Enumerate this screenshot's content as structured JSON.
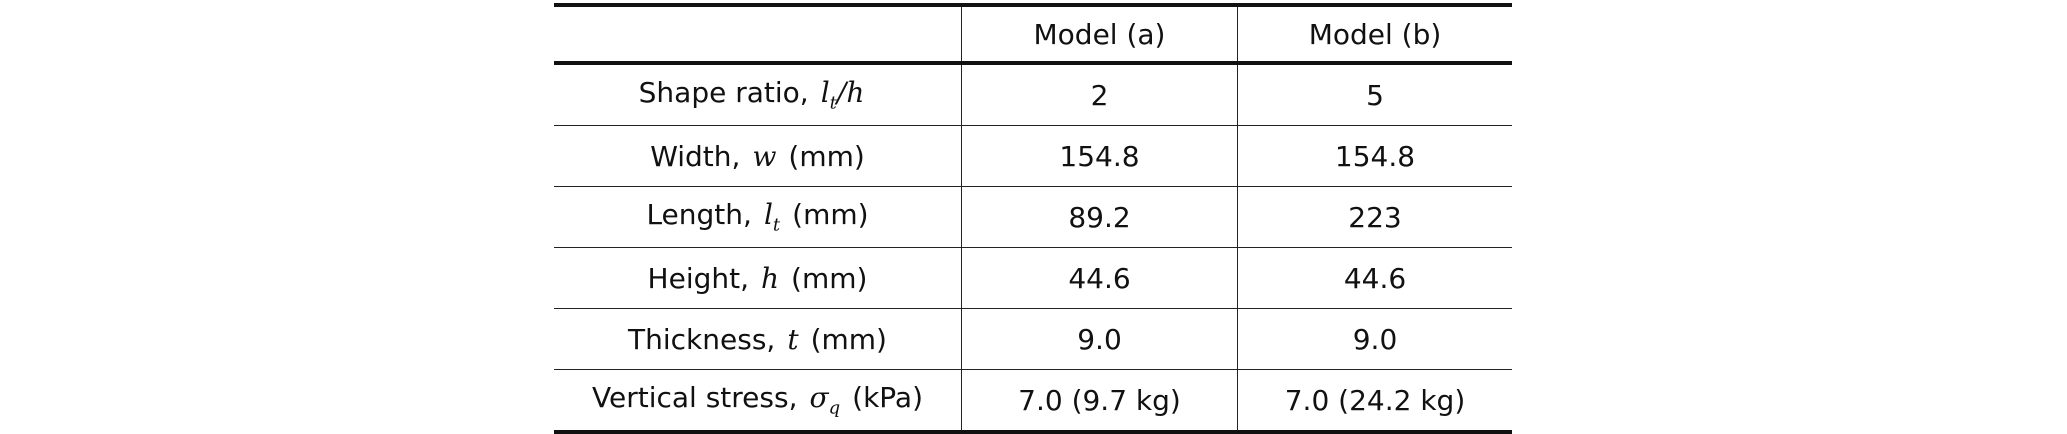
{
  "table": {
    "header": [
      "Model (a)",
      "Model (b)"
    ],
    "rows": [
      {
        "label": [
          {
            "text": "Shape ratio,"
          },
          {
            "math": "l",
            "sub": "t"
          },
          {
            "math": "/h"
          }
        ],
        "values": [
          "2",
          "5"
        ]
      },
      {
        "label": [
          {
            "text": "Width,"
          },
          {
            "math": "w"
          },
          {
            "text": "(mm)"
          }
        ],
        "values": [
          "154.8",
          "154.8"
        ]
      },
      {
        "label": [
          {
            "text": "Length,"
          },
          {
            "math": "l",
            "sub": "t"
          },
          {
            "text": "(mm)"
          }
        ],
        "values": [
          "89.2",
          "223"
        ]
      },
      {
        "label": [
          {
            "text": "Height,"
          },
          {
            "math": "h"
          },
          {
            "text": "(mm)"
          }
        ],
        "values": [
          "44.6",
          "44.6"
        ]
      },
      {
        "label": [
          {
            "text": "Thickness,"
          },
          {
            "math": "t"
          },
          {
            "text": "(mm)"
          }
        ],
        "values": [
          "9.0",
          "9.0"
        ]
      },
      {
        "label": [
          {
            "text": "Vertical stress,"
          },
          {
            "math": "σ",
            "sub": "q"
          },
          {
            "text": "(kPa)"
          }
        ],
        "values": [
          "7.0 (9.7 kg)",
          "7.0 (24.2 kg)"
        ]
      }
    ]
  }
}
